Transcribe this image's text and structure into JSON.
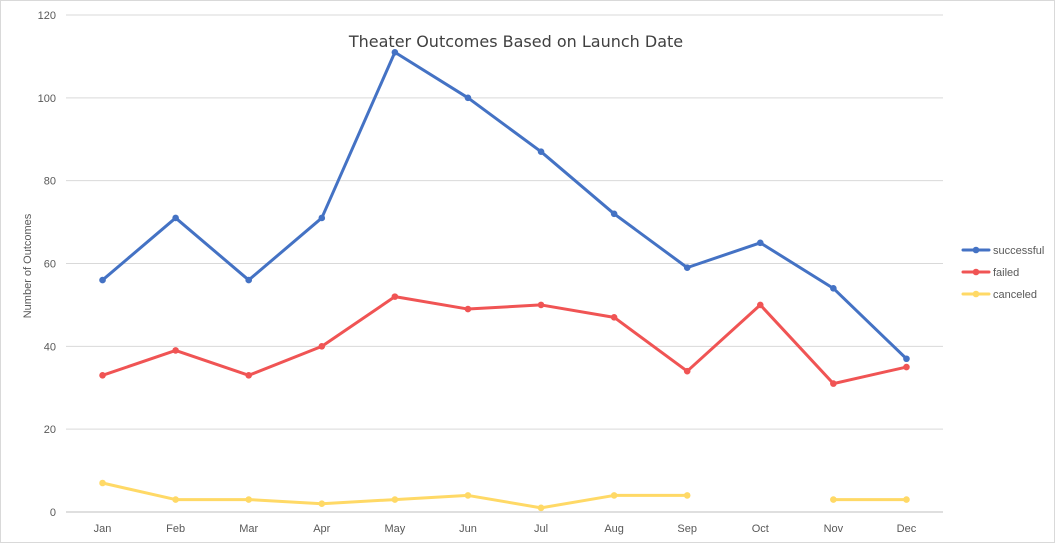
{
  "chart_data": {
    "type": "line",
    "title": "Theater Outcomes Based on Launch Date",
    "xlabel": "",
    "ylabel": "Number of Outcomes",
    "categories": [
      "Jan",
      "Feb",
      "Mar",
      "Apr",
      "May",
      "Jun",
      "Jul",
      "Aug",
      "Sep",
      "Oct",
      "Nov",
      "Dec"
    ],
    "ylim": [
      0,
      120
    ],
    "yticks": [
      0,
      20,
      40,
      60,
      80,
      100,
      120
    ],
    "grid": "horizontal",
    "legend_position": "right",
    "series": [
      {
        "name": "successful",
        "color": "#4472c4",
        "values": [
          56,
          71,
          56,
          71,
          111,
          100,
          87,
          72,
          59,
          65,
          54,
          37
        ]
      },
      {
        "name": "failed",
        "color": "#f05454",
        "values": [
          33,
          39,
          33,
          40,
          52,
          49,
          50,
          47,
          34,
          50,
          31,
          35
        ]
      },
      {
        "name": "canceled",
        "color": "#ffd966",
        "values": [
          7,
          3,
          3,
          2,
          3,
          4,
          1,
          4,
          4,
          null,
          3,
          3
        ]
      }
    ]
  }
}
